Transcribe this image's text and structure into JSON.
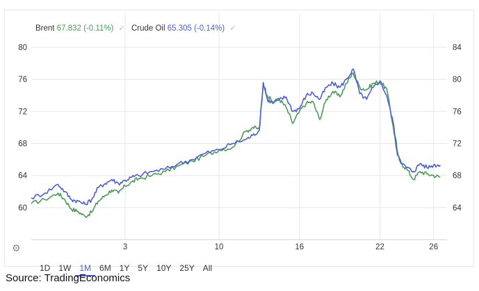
{
  "legend": {
    "brent_name": "Brent",
    "brent_value": "67.832 (-0.11%)",
    "crude_name": "Crude Oil",
    "crude_value": "65.305 (-0.14%)"
  },
  "range_buttons": [
    "1D",
    "1W",
    "1M",
    "6M",
    "1Y",
    "5Y",
    "10Y",
    "25Y",
    "All"
  ],
  "active_range": "1M",
  "source": "Source: TradingEconomics",
  "colors": {
    "brent": "#4c9a55",
    "crude": "#4c5fd6",
    "grid": "#e6e6e6",
    "axis_text": "#333333"
  },
  "chart_data": {
    "type": "line",
    "title": "",
    "xlabel": "",
    "x_tick_labels": [
      "3",
      "10",
      "16",
      "22",
      "26"
    ],
    "x_tick_days": [
      3,
      10,
      16,
      22,
      26
    ],
    "x_range_days": [
      -4,
      27
    ],
    "y_left": {
      "ticks": [
        60,
        64,
        68,
        72,
        76,
        80
      ],
      "ylim": [
        56,
        82
      ]
    },
    "y_right": {
      "ticks": [
        64,
        68,
        72,
        76,
        80,
        84
      ],
      "ylim": [
        60,
        86
      ]
    },
    "grid": true,
    "legend_placement": "top-left",
    "series": [
      {
        "name": "Brent",
        "axis": "right",
        "color": "#4c9a55",
        "x": [
          -4,
          -3,
          -2,
          -1.5,
          -1,
          -0.5,
          0,
          0.5,
          1,
          1.5,
          2,
          2.5,
          3,
          3.5,
          4,
          5,
          6,
          7,
          8,
          9,
          10,
          11,
          12,
          12.5,
          13,
          13.3,
          13.6,
          14,
          14.5,
          15,
          15.5,
          16,
          16.5,
          17,
          17.5,
          18,
          18.5,
          19,
          19.5,
          20,
          20.5,
          21,
          21.5,
          22,
          22.5,
          23,
          23.3,
          23.6,
          24,
          24.5,
          25,
          25.5,
          26,
          26.5
        ],
        "y": [
          64.5,
          65.0,
          65.8,
          65.0,
          63.8,
          63.5,
          62.9,
          63.4,
          64.8,
          65.5,
          66.2,
          65.8,
          66.7,
          67.2,
          67.6,
          68.0,
          68.5,
          69.2,
          69.8,
          70.5,
          71.2,
          71.5,
          73.5,
          74.0,
          73.8,
          79.5,
          78.0,
          77.2,
          77.5,
          76.5,
          74.5,
          76.0,
          77.0,
          77.2,
          75.0,
          77.5,
          78.5,
          77.8,
          79.5,
          80.8,
          79.0,
          78.7,
          79.5,
          79.7,
          78.8,
          74.0,
          70.5,
          69.5,
          68.8,
          67.5,
          68.5,
          68.2,
          68.0,
          67.8
        ]
      },
      {
        "name": "Crude Oil",
        "axis": "left",
        "color": "#4c5fd6",
        "x": [
          -4,
          -3,
          -2,
          -1.5,
          -1,
          -0.5,
          0,
          0.5,
          1,
          1.5,
          2,
          2.5,
          3,
          3.5,
          4,
          5,
          6,
          7,
          8,
          9,
          10,
          11,
          12,
          12.5,
          13,
          13.3,
          13.6,
          14,
          14.5,
          15,
          15.5,
          16,
          16.5,
          17,
          17.5,
          18,
          18.5,
          19,
          19.5,
          20,
          20.5,
          21,
          21.5,
          22,
          22.5,
          23,
          23.3,
          23.6,
          24,
          24.5,
          25,
          25.5,
          26,
          26.5
        ],
        "y": [
          61.2,
          61.8,
          62.9,
          62.0,
          61.0,
          60.8,
          60.4,
          61.0,
          62.5,
          63.0,
          63.5,
          63.0,
          63.4,
          63.8,
          64.0,
          64.5,
          64.8,
          65.5,
          66.0,
          66.8,
          67.2,
          68.0,
          68.5,
          69.0,
          69.6,
          75.6,
          73.5,
          73.0,
          73.5,
          73.8,
          72.0,
          72.4,
          74.0,
          74.3,
          73.5,
          75.0,
          75.5,
          75.0,
          76.0,
          77.3,
          74.2,
          73.5,
          75.0,
          75.8,
          74.0,
          70.5,
          67.0,
          65.5,
          65.0,
          64.5,
          65.5,
          65.0,
          65.3,
          65.3
        ]
      }
    ]
  }
}
